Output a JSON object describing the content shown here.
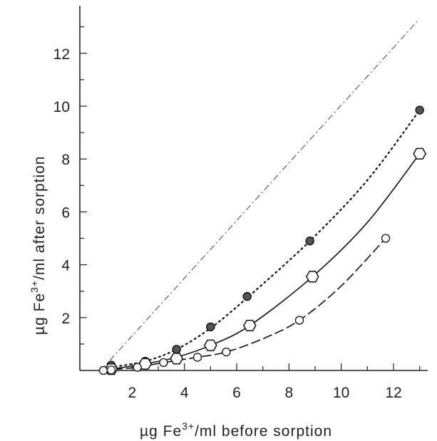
{
  "chart_data": {
    "type": "scatter",
    "xlabel_parts": {
      "unit": "µg Fe",
      "sup": "3+",
      "rest": "/ml  before sorption"
    },
    "ylabel_parts": {
      "unit": "µg Fe",
      "sup": "3+",
      "rest": "/ml  after sorption"
    },
    "xlim": [
      0,
      13.5
    ],
    "ylim": [
      0,
      13.8
    ],
    "x_ticks": [
      2,
      4,
      6,
      8,
      10,
      12
    ],
    "y_ticks": [
      2,
      4,
      6,
      8,
      10,
      12
    ],
    "x_minor_step": 1,
    "y_minor_step": 1,
    "grid": false,
    "reference_line": {
      "style": "dash-dot",
      "from": [
        0.8,
        0
      ],
      "to": [
        12.9,
        13.2
      ]
    },
    "series": [
      {
        "marker": "filled-circle",
        "line": "dotted",
        "x": [
          1.2,
          2.5,
          3.7,
          5.0,
          6.4,
          8.8,
          13.0
        ],
        "y": [
          0.2,
          0.35,
          0.8,
          1.65,
          2.8,
          4.9,
          9.85
        ]
      },
      {
        "marker": "open-hexagon",
        "line": "solid",
        "x": [
          1.2,
          2.5,
          3.7,
          5.0,
          6.5,
          8.9,
          13.0
        ],
        "y": [
          0.05,
          0.25,
          0.45,
          0.95,
          1.7,
          3.55,
          8.2
        ]
      },
      {
        "marker": "open-circle",
        "line": "dashed",
        "x": [
          0.9,
          1.2,
          2.2,
          3.2,
          4.5,
          5.6,
          8.4,
          11.7
        ],
        "y": [
          0.0,
          0.02,
          0.12,
          0.3,
          0.5,
          0.7,
          1.9,
          5.0
        ]
      }
    ],
    "curves": [
      {
        "line": "dotted",
        "x": [
          0.8,
          1.2,
          2.5,
          3.7,
          5.0,
          6.4,
          8.8,
          11.0,
          13.0
        ],
        "y": [
          0.0,
          0.12,
          0.35,
          0.8,
          1.6,
          2.75,
          4.9,
          7.2,
          9.85
        ]
      },
      {
        "line": "solid",
        "x": [
          0.8,
          1.2,
          2.5,
          3.7,
          5.0,
          6.5,
          8.9,
          11.0,
          13.0
        ],
        "y": [
          0.0,
          0.05,
          0.25,
          0.5,
          0.95,
          1.7,
          3.55,
          5.6,
          8.2
        ]
      },
      {
        "line": "dashed",
        "x": [
          0.8,
          2.2,
          3.2,
          4.5,
          5.6,
          7.0,
          8.4,
          10.0,
          11.7
        ],
        "y": [
          0.0,
          0.12,
          0.3,
          0.5,
          0.7,
          1.2,
          1.9,
          3.2,
          5.0
        ]
      }
    ]
  }
}
